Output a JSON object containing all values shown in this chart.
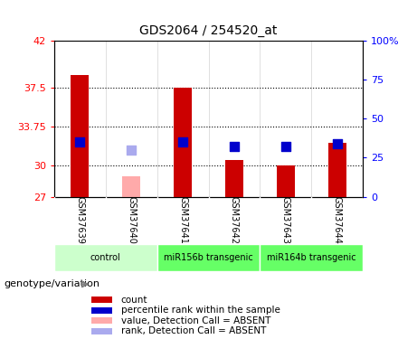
{
  "title": "GDS2064 / 254520_at",
  "samples": [
    "GSM37639",
    "GSM37640",
    "GSM37641",
    "GSM37642",
    "GSM37643",
    "GSM37644"
  ],
  "ylim_left": [
    27,
    42
  ],
  "ylim_right": [
    0,
    100
  ],
  "yticks_left": [
    27,
    30,
    33.75,
    37.5,
    42
  ],
  "yticks_right": [
    0,
    25,
    50,
    75,
    100
  ],
  "ytick_labels_left": [
    "27",
    "30",
    "33.75",
    "37.5",
    "42"
  ],
  "ytick_labels_right": [
    "0",
    "25",
    "50",
    "75",
    "100%"
  ],
  "hlines": [
    30,
    33.75,
    37.5
  ],
  "bar_values": [
    38.7,
    null,
    37.5,
    30.5,
    30.0,
    32.2
  ],
  "bar_absent_values": [
    null,
    29.0,
    null,
    null,
    null,
    null
  ],
  "rank_values": [
    32.3,
    null,
    32.3,
    31.8,
    31.8,
    32.1
  ],
  "rank_absent_values": [
    null,
    31.5,
    null,
    null,
    null,
    null
  ],
  "bar_color": "#cc0000",
  "bar_absent_color": "#ffaaaa",
  "rank_color": "#0000cc",
  "rank_absent_color": "#aaaaee",
  "groups": [
    {
      "label": "control",
      "cols": [
        0,
        1
      ],
      "color": "#ccffcc"
    },
    {
      "label": "miR156b transgenic",
      "cols": [
        2,
        3
      ],
      "color": "#66ff66"
    },
    {
      "label": "miR164b transgenic",
      "cols": [
        4,
        5
      ],
      "color": "#66ff66"
    }
  ],
  "legend_items": [
    {
      "color": "#cc0000",
      "label": "count"
    },
    {
      "color": "#0000cc",
      "label": "percentile rank within the sample"
    },
    {
      "color": "#ffaaaa",
      "label": "value, Detection Call = ABSENT"
    },
    {
      "color": "#aaaaee",
      "label": "rank, Detection Call = ABSENT"
    }
  ],
  "xlabel_left": "genotype/variation",
  "bar_width": 0.35,
  "rank_marker_size": 60
}
